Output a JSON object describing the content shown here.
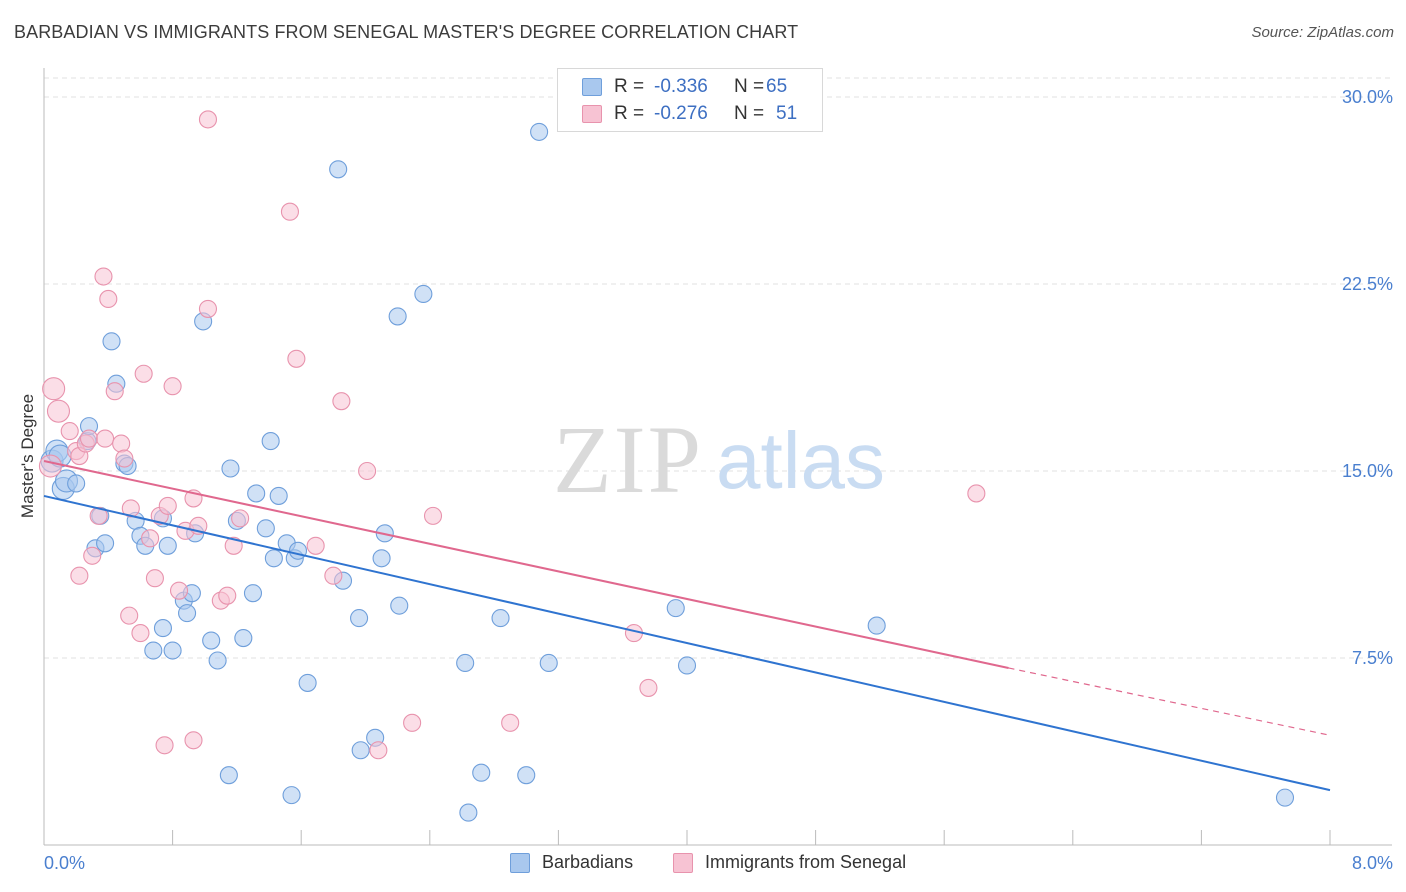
{
  "title": "BARBADIAN VS IMMIGRANTS FROM SENEGAL MASTER'S DEGREE CORRELATION CHART",
  "source": "Source: ZipAtlas.com",
  "watermark": {
    "zip": "ZIP",
    "atlas": "atlas"
  },
  "legend": {
    "rows": [
      {
        "r_label": "R =",
        "r_value": "-0.336",
        "n_label": "N =",
        "n_value": "65",
        "color": "#a9c8ee",
        "border": "#6f9fdb"
      },
      {
        "r_label": "R =",
        "r_value": "-0.276",
        "n_label": "N =",
        "n_value": "51",
        "color": "#f7c3d3",
        "border": "#e893ad"
      }
    ]
  },
  "bottom_legend": {
    "items": [
      {
        "label": "Barbadians",
        "color": "#a9c8ee",
        "border": "#6f9fdb"
      },
      {
        "label": "Immigrants from Senegal",
        "color": "#f7c3d3",
        "border": "#e893ad"
      }
    ]
  },
  "chart_data": {
    "type": "scatter",
    "title": "BARBADIAN VS IMMIGRANTS FROM SENEGAL MASTER'S DEGREE CORRELATION CHART",
    "ylabel": "Master's Degree",
    "xlabel": "",
    "xlim": [
      0,
      8
    ],
    "ylim": [
      0,
      30
    ],
    "x_tick_labels": [
      "0.0%",
      "8.0%"
    ],
    "y_ticks": [
      7.5,
      15,
      22.5,
      30
    ],
    "y_tick_labels": [
      "7.5%",
      "15.0%",
      "22.5%",
      "30.0%"
    ],
    "series": [
      {
        "name": "Barbadians",
        "color": "#a9c8ee",
        "stroke": "#6f9fdb",
        "line_color": "#2f74d0",
        "trend": {
          "x0": 0,
          "y0": 14.0,
          "x1": 8,
          "y1": 2.2
        },
        "points": [
          [
            0.05,
            15.4
          ],
          [
            0.08,
            15.8
          ],
          [
            0.1,
            15.6
          ],
          [
            0.12,
            14.3
          ],
          [
            0.14,
            14.6
          ],
          [
            0.2,
            14.5
          ],
          [
            0.27,
            16.2
          ],
          [
            0.28,
            16.8
          ],
          [
            0.32,
            11.9
          ],
          [
            0.35,
            13.2
          ],
          [
            0.38,
            12.1
          ],
          [
            0.42,
            20.2
          ],
          [
            0.45,
            18.5
          ],
          [
            0.5,
            15.3
          ],
          [
            0.52,
            15.2
          ],
          [
            0.57,
            13.0
          ],
          [
            0.6,
            12.4
          ],
          [
            0.63,
            12.0
          ],
          [
            0.68,
            7.8
          ],
          [
            0.74,
            13.1
          ],
          [
            0.74,
            8.7
          ],
          [
            0.77,
            12.0
          ],
          [
            0.8,
            7.8
          ],
          [
            0.87,
            9.8
          ],
          [
            0.89,
            9.3
          ],
          [
            0.92,
            10.1
          ],
          [
            0.94,
            12.5
          ],
          [
            0.99,
            21.0
          ],
          [
            1.04,
            8.2
          ],
          [
            1.08,
            7.4
          ],
          [
            1.16,
            15.1
          ],
          [
            1.2,
            13.0
          ],
          [
            1.24,
            8.3
          ],
          [
            1.3,
            10.1
          ],
          [
            1.32,
            14.1
          ],
          [
            1.38,
            12.7
          ],
          [
            1.41,
            16.2
          ],
          [
            1.43,
            11.5
          ],
          [
            1.46,
            14.0
          ],
          [
            1.51,
            12.1
          ],
          [
            1.56,
            11.5
          ],
          [
            1.58,
            11.8
          ],
          [
            1.64,
            6.5
          ],
          [
            1.83,
            27.1
          ],
          [
            1.86,
            10.6
          ],
          [
            1.96,
            9.1
          ],
          [
            2.1,
            11.5
          ],
          [
            2.12,
            12.5
          ],
          [
            2.21,
            9.6
          ],
          [
            2.36,
            22.1
          ],
          [
            2.2,
            21.2
          ],
          [
            2.62,
            7.3
          ],
          [
            2.84,
            9.1
          ],
          [
            3.08,
            28.6
          ],
          [
            3.14,
            7.3
          ],
          [
            3.93,
            9.5
          ],
          [
            4.0,
            7.2
          ],
          [
            5.18,
            8.8
          ],
          [
            7.72,
            1.9
          ],
          [
            1.15,
            2.8
          ],
          [
            1.54,
            2.0
          ],
          [
            1.97,
            3.8
          ],
          [
            2.06,
            4.3
          ],
          [
            2.72,
            2.9
          ],
          [
            2.64,
            1.3
          ],
          [
            3.0,
            2.8
          ]
        ]
      },
      {
        "name": "Immigrants from Senegal",
        "color": "#f7c3d3",
        "stroke": "#e893ad",
        "line_color": "#e0688e",
        "trend": {
          "x0": 0,
          "y0": 15.4,
          "x1": 6.0,
          "y1": 7.1,
          "dash_x1": 8,
          "dash_y1": 4.4
        },
        "points": [
          [
            0.04,
            15.2
          ],
          [
            0.06,
            18.3
          ],
          [
            0.09,
            17.4
          ],
          [
            0.16,
            16.6
          ],
          [
            0.2,
            15.8
          ],
          [
            0.22,
            15.6
          ],
          [
            0.26,
            16.1
          ],
          [
            0.28,
            16.3
          ],
          [
            0.3,
            11.6
          ],
          [
            0.22,
            10.8
          ],
          [
            0.34,
            13.2
          ],
          [
            0.38,
            16.3
          ],
          [
            0.37,
            22.8
          ],
          [
            0.4,
            21.9
          ],
          [
            0.44,
            18.2
          ],
          [
            0.48,
            16.1
          ],
          [
            0.5,
            15.5
          ],
          [
            0.54,
            13.5
          ],
          [
            0.53,
            9.2
          ],
          [
            0.6,
            8.5
          ],
          [
            0.62,
            18.9
          ],
          [
            0.66,
            12.3
          ],
          [
            0.69,
            10.7
          ],
          [
            0.72,
            13.2
          ],
          [
            0.77,
            13.6
          ],
          [
            0.8,
            18.4
          ],
          [
            0.84,
            10.2
          ],
          [
            0.88,
            12.6
          ],
          [
            0.93,
            13.9
          ],
          [
            0.96,
            12.8
          ],
          [
            0.93,
            4.2
          ],
          [
            0.75,
            4.0
          ],
          [
            1.02,
            21.5
          ],
          [
            1.1,
            9.8
          ],
          [
            1.14,
            10.0
          ],
          [
            1.18,
            12.0
          ],
          [
            1.22,
            13.1
          ],
          [
            1.02,
            29.1
          ],
          [
            1.53,
            25.4
          ],
          [
            1.57,
            19.5
          ],
          [
            1.69,
            12.0
          ],
          [
            1.85,
            17.8
          ],
          [
            1.8,
            10.8
          ],
          [
            2.01,
            15.0
          ],
          [
            2.08,
            3.8
          ],
          [
            2.29,
            4.9
          ],
          [
            2.42,
            13.2
          ],
          [
            2.9,
            4.9
          ],
          [
            3.67,
            8.5
          ],
          [
            3.76,
            6.3
          ],
          [
            5.8,
            14.1
          ]
        ]
      }
    ]
  }
}
